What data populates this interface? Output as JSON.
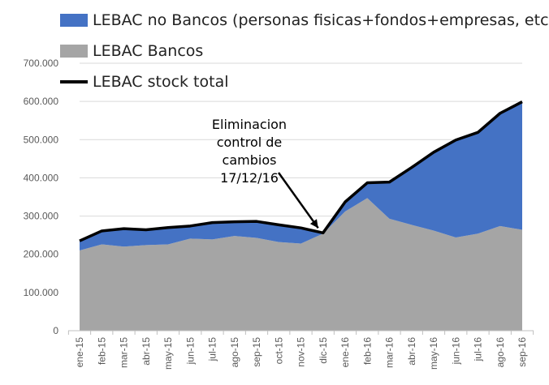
{
  "chart_data": {
    "type": "area",
    "categories": [
      "ene-15",
      "feb-15",
      "mar-15",
      "abr-15",
      "may-15",
      "jun-15",
      "jul-15",
      "ago-15",
      "sep-15",
      "oct-15",
      "nov-15",
      "dic-15",
      "ene-16",
      "feb-16",
      "mar-16",
      "abr-16",
      "may-16",
      "jun-16",
      "jul-16",
      "ago-16",
      "sep-16"
    ],
    "series": [
      {
        "name": "LEBAC no Bancos (personas fisicas+fondos+empresas, etc)",
        "kind": "stacked-area",
        "color": "#4472C4",
        "values": [
          25000,
          35000,
          47000,
          40000,
          44000,
          33000,
          44000,
          37000,
          43000,
          45000,
          41000,
          2000,
          25000,
          40000,
          96000,
          150000,
          205000,
          255000,
          265000,
          295000,
          335000
        ]
      },
      {
        "name": "LEBAC Bancos",
        "kind": "stacked-area",
        "color": "#A5A5A5",
        "values": [
          210000,
          226000,
          220000,
          224000,
          226000,
          241000,
          239000,
          248000,
          243000,
          232000,
          228000,
          254000,
          312000,
          347000,
          293000,
          277000,
          262000,
          244000,
          254000,
          274000,
          264000
        ]
      },
      {
        "name": "LEBAC stock total",
        "kind": "line",
        "color": "#000000",
        "values": [
          235000,
          261000,
          267000,
          264000,
          270000,
          274000,
          283000,
          285000,
          286000,
          277000,
          269000,
          256000,
          337000,
          387000,
          389000,
          427000,
          467000,
          499000,
          519000,
          569000,
          599000
        ]
      }
    ],
    "ylim": [
      0,
      700000
    ],
    "yticks": [
      "0",
      "100.000",
      "200.000",
      "300.000",
      "400.000",
      "500.000",
      "600.000",
      "700.000"
    ],
    "grid": true,
    "legend_position": "top-left",
    "annotation": {
      "text": "Eliminacion\ncontrol de\ncambios\n17/12/16",
      "target_category": "dic-15"
    }
  }
}
